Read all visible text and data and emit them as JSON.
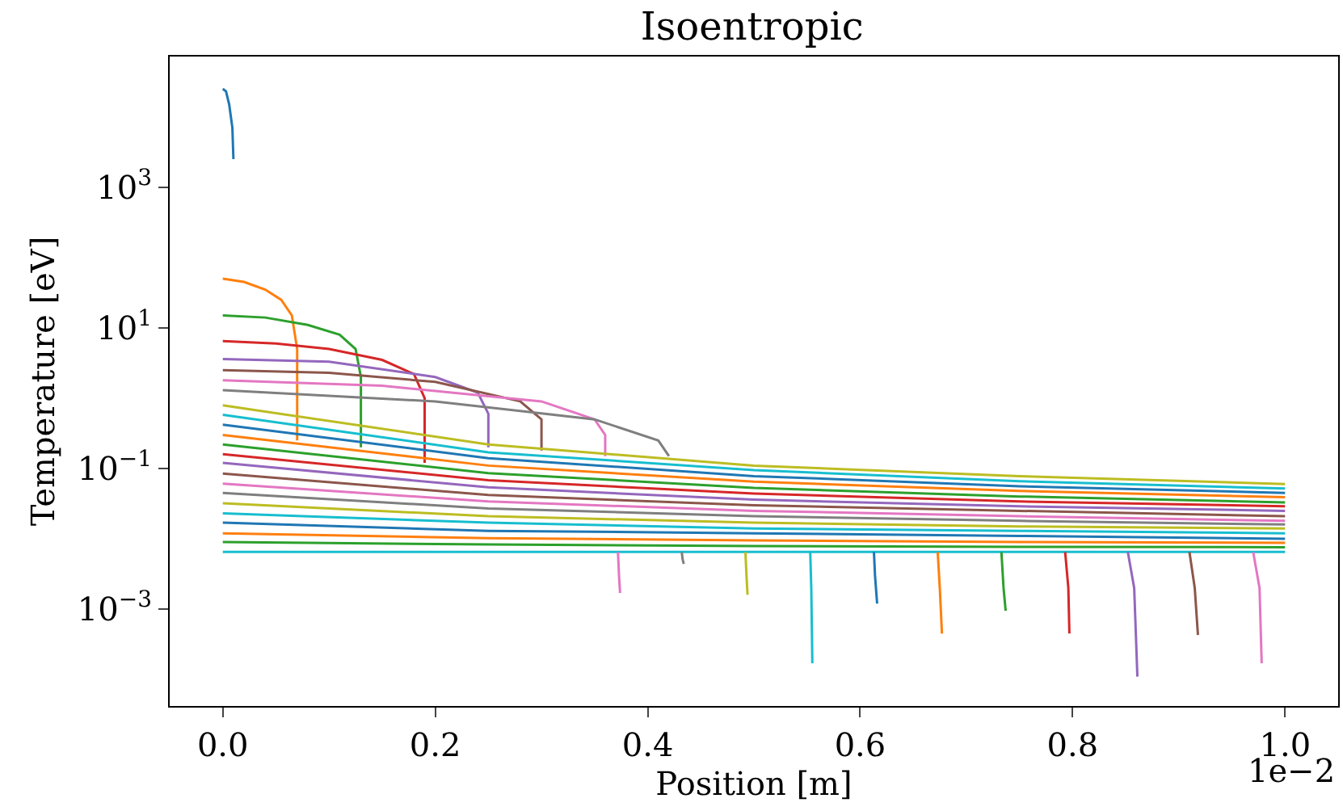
{
  "chart_data": {
    "type": "line",
    "title": "Isoentropic",
    "xlabel": "Position [m]",
    "ylabel": "Temperature [eV]",
    "log": "y",
    "xlim": [
      -0.05,
      1.05
    ],
    "xticks": [
      {
        "value": 0,
        "label": "0.0"
      },
      0.2,
      0.4,
      0.6,
      0.8,
      {
        "value": 1,
        "label": "1.0"
      }
    ],
    "ylim": [
      4.2e-05,
      72000
    ],
    "yticks": [
      {
        "value": 0.001,
        "label": "10$^{−3}$"
      },
      {
        "value": 0.1,
        "label": "10$^{−1}$"
      },
      {
        "value": 10,
        "label": "10$^{1}$"
      },
      {
        "value": 1000,
        "label": "10$^{3}$"
      }
    ],
    "annotations": [
      "1e−2"
    ],
    "marker": "none",
    "line_style": "solid",
    "series": [
      {
        "color": "#1f77b4",
        "x": [
          0,
          0.003,
          0.006,
          0.009,
          0.01
        ],
        "values": [
          25000,
          23000,
          15000,
          7000,
          2500
        ]
      },
      {
        "color": "#ff7f0e",
        "x": [
          0,
          0.02,
          0.04,
          0.055,
          0.065,
          0.07,
          0.07
        ],
        "values": [
          50,
          45,
          35,
          25,
          15,
          5,
          0.25
        ]
      },
      {
        "color": "#2ca02c",
        "x": [
          0,
          0.04,
          0.08,
          0.11,
          0.125,
          0.13,
          0.13
        ],
        "values": [
          15,
          14,
          11,
          8,
          5,
          2,
          0.2
        ]
      },
      {
        "color": "#d62728",
        "x": [
          0,
          0.05,
          0.1,
          0.15,
          0.18,
          0.19,
          0.19
        ],
        "values": [
          6.5,
          6,
          5,
          3.5,
          2.2,
          1,
          0.12
        ]
      },
      {
        "color": "#9467bd",
        "x": [
          0,
          0.1,
          0.2,
          0.24,
          0.25,
          0.25
        ],
        "values": [
          3.6,
          3.3,
          2,
          1.2,
          0.6,
          0.2
        ]
      },
      {
        "color": "#8c564b",
        "x": [
          0,
          0.1,
          0.2,
          0.28,
          0.3,
          0.3
        ],
        "values": [
          2.5,
          2.3,
          1.7,
          0.9,
          0.5,
          0.18
        ]
      },
      {
        "color": "#e377c2",
        "x": [
          0,
          0.15,
          0.3,
          0.35,
          0.36,
          0.36
        ],
        "values": [
          1.8,
          1.5,
          0.9,
          0.5,
          0.3,
          0.15
        ]
      },
      {
        "color": "#7f7f7f",
        "x": [
          0,
          0.2,
          0.35,
          0.41,
          0.42
        ],
        "values": [
          1.3,
          0.9,
          0.5,
          0.25,
          0.15
        ]
      },
      {
        "color": "#bcbd22",
        "x": [
          0,
          0.25,
          0.5,
          0.75,
          1
        ],
        "values": [
          0.79,
          0.22,
          0.11,
          0.078,
          0.06
        ]
      },
      {
        "color": "#17becf",
        "x": [
          0,
          0.25,
          0.5,
          0.75,
          1
        ],
        "values": [
          0.58,
          0.17,
          0.095,
          0.066,
          0.052
        ]
      },
      {
        "color": "#1f77b4",
        "x": [
          0,
          0.25,
          0.5,
          0.75,
          1
        ],
        "values": [
          0.42,
          0.14,
          0.078,
          0.056,
          0.045
        ]
      },
      {
        "color": "#ff7f0e",
        "x": [
          0,
          0.25,
          0.5,
          0.75,
          1
        ],
        "values": [
          0.3,
          0.11,
          0.065,
          0.048,
          0.039
        ]
      },
      {
        "color": "#2ca02c",
        "x": [
          0,
          0.25,
          0.5,
          0.75,
          1
        ],
        "values": [
          0.22,
          0.086,
          0.053,
          0.04,
          0.033
        ]
      },
      {
        "color": "#d62728",
        "x": [
          0,
          0.25,
          0.5,
          0.75,
          1
        ],
        "values": [
          0.16,
          0.068,
          0.044,
          0.034,
          0.029
        ]
      },
      {
        "color": "#9467bd",
        "x": [
          0,
          0.25,
          0.5,
          0.75,
          1
        ],
        "values": [
          0.12,
          0.054,
          0.036,
          0.029,
          0.025
        ]
      },
      {
        "color": "#8c564b",
        "x": [
          0,
          0.25,
          0.5,
          0.75,
          1
        ],
        "values": [
          0.085,
          0.042,
          0.03,
          0.025,
          0.021
        ]
      },
      {
        "color": "#e377c2",
        "x": [
          0,
          0.25,
          0.5,
          0.75,
          1
        ],
        "values": [
          0.061,
          0.034,
          0.025,
          0.021,
          0.018
        ]
      },
      {
        "color": "#7f7f7f",
        "x": [
          0,
          0.25,
          0.5,
          0.75,
          1
        ],
        "values": [
          0.045,
          0.027,
          0.021,
          0.018,
          0.016
        ]
      },
      {
        "color": "#bcbd22",
        "x": [
          0,
          0.25,
          0.5,
          0.75,
          1
        ],
        "values": [
          0.032,
          0.021,
          0.017,
          0.015,
          0.014
        ]
      },
      {
        "color": "#17becf",
        "x": [
          0,
          0.25,
          0.5,
          0.75,
          1
        ],
        "values": [
          0.023,
          0.017,
          0.014,
          0.013,
          0.012
        ]
      },
      {
        "color": "#1f77b4",
        "x": [
          0,
          0.25,
          0.5,
          0.75,
          1
        ],
        "values": [
          0.017,
          0.013,
          0.012,
          0.011,
          0.01
        ]
      },
      {
        "color": "#ff7f0e",
        "x": [
          0,
          0.25,
          0.5,
          0.75,
          1
        ],
        "values": [
          0.012,
          0.0102,
          0.0095,
          0.009,
          0.0088
        ]
      },
      {
        "color": "#2ca02c",
        "x": [
          0,
          0.25,
          0.5,
          0.75,
          1
        ],
        "values": [
          0.009,
          0.0083,
          0.0079,
          0.0077,
          0.0076
        ]
      },
      {
        "color": "#17becf",
        "x": [
          0,
          0.25,
          0.5,
          0.75,
          1
        ],
        "values": [
          0.0065,
          0.0065,
          0.0065,
          0.0065,
          0.0065
        ]
      },
      {
        "color": "#e377c2",
        "x": [
          0.372,
          0.373,
          0.374
        ],
        "values": [
          0.0065,
          0.003,
          0.0017
        ]
      },
      {
        "color": "#7f7f7f",
        "x": [
          0.432,
          0.433,
          0.434
        ],
        "values": [
          0.0065,
          0.005,
          0.0044
        ]
      },
      {
        "color": "#bcbd22",
        "x": [
          0.492,
          0.493,
          0.494
        ],
        "values": [
          0.0065,
          0.003,
          0.0016
        ]
      },
      {
        "color": "#17becf",
        "x": [
          0.553,
          0.554,
          0.555
        ],
        "values": [
          0.0065,
          0.002,
          0.00017
        ]
      },
      {
        "color": "#1f77b4",
        "x": [
          0.613,
          0.614,
          0.616
        ],
        "values": [
          0.0065,
          0.003,
          0.0012
        ]
      },
      {
        "color": "#ff7f0e",
        "x": [
          0.673,
          0.675,
          0.677
        ],
        "values": [
          0.0065,
          0.002,
          0.00045
        ]
      },
      {
        "color": "#2ca02c",
        "x": [
          0.733,
          0.735,
          0.737
        ],
        "values": [
          0.0065,
          0.002,
          0.00095
        ]
      },
      {
        "color": "#d62728",
        "x": [
          0.793,
          0.796,
          0.797
        ],
        "values": [
          0.0065,
          0.002,
          0.00045
        ]
      },
      {
        "color": "#9467bd",
        "x": [
          0.852,
          0.858,
          0.861
        ],
        "values": [
          0.0065,
          0.002,
          0.00011
        ]
      },
      {
        "color": "#8c564b",
        "x": [
          0.91,
          0.915,
          0.918
        ],
        "values": [
          0.0065,
          0.002,
          0.00043
        ]
      },
      {
        "color": "#e377c2",
        "x": [
          0.97,
          0.976,
          0.978
        ],
        "values": [
          0.0065,
          0.002,
          0.00017
        ]
      }
    ]
  }
}
